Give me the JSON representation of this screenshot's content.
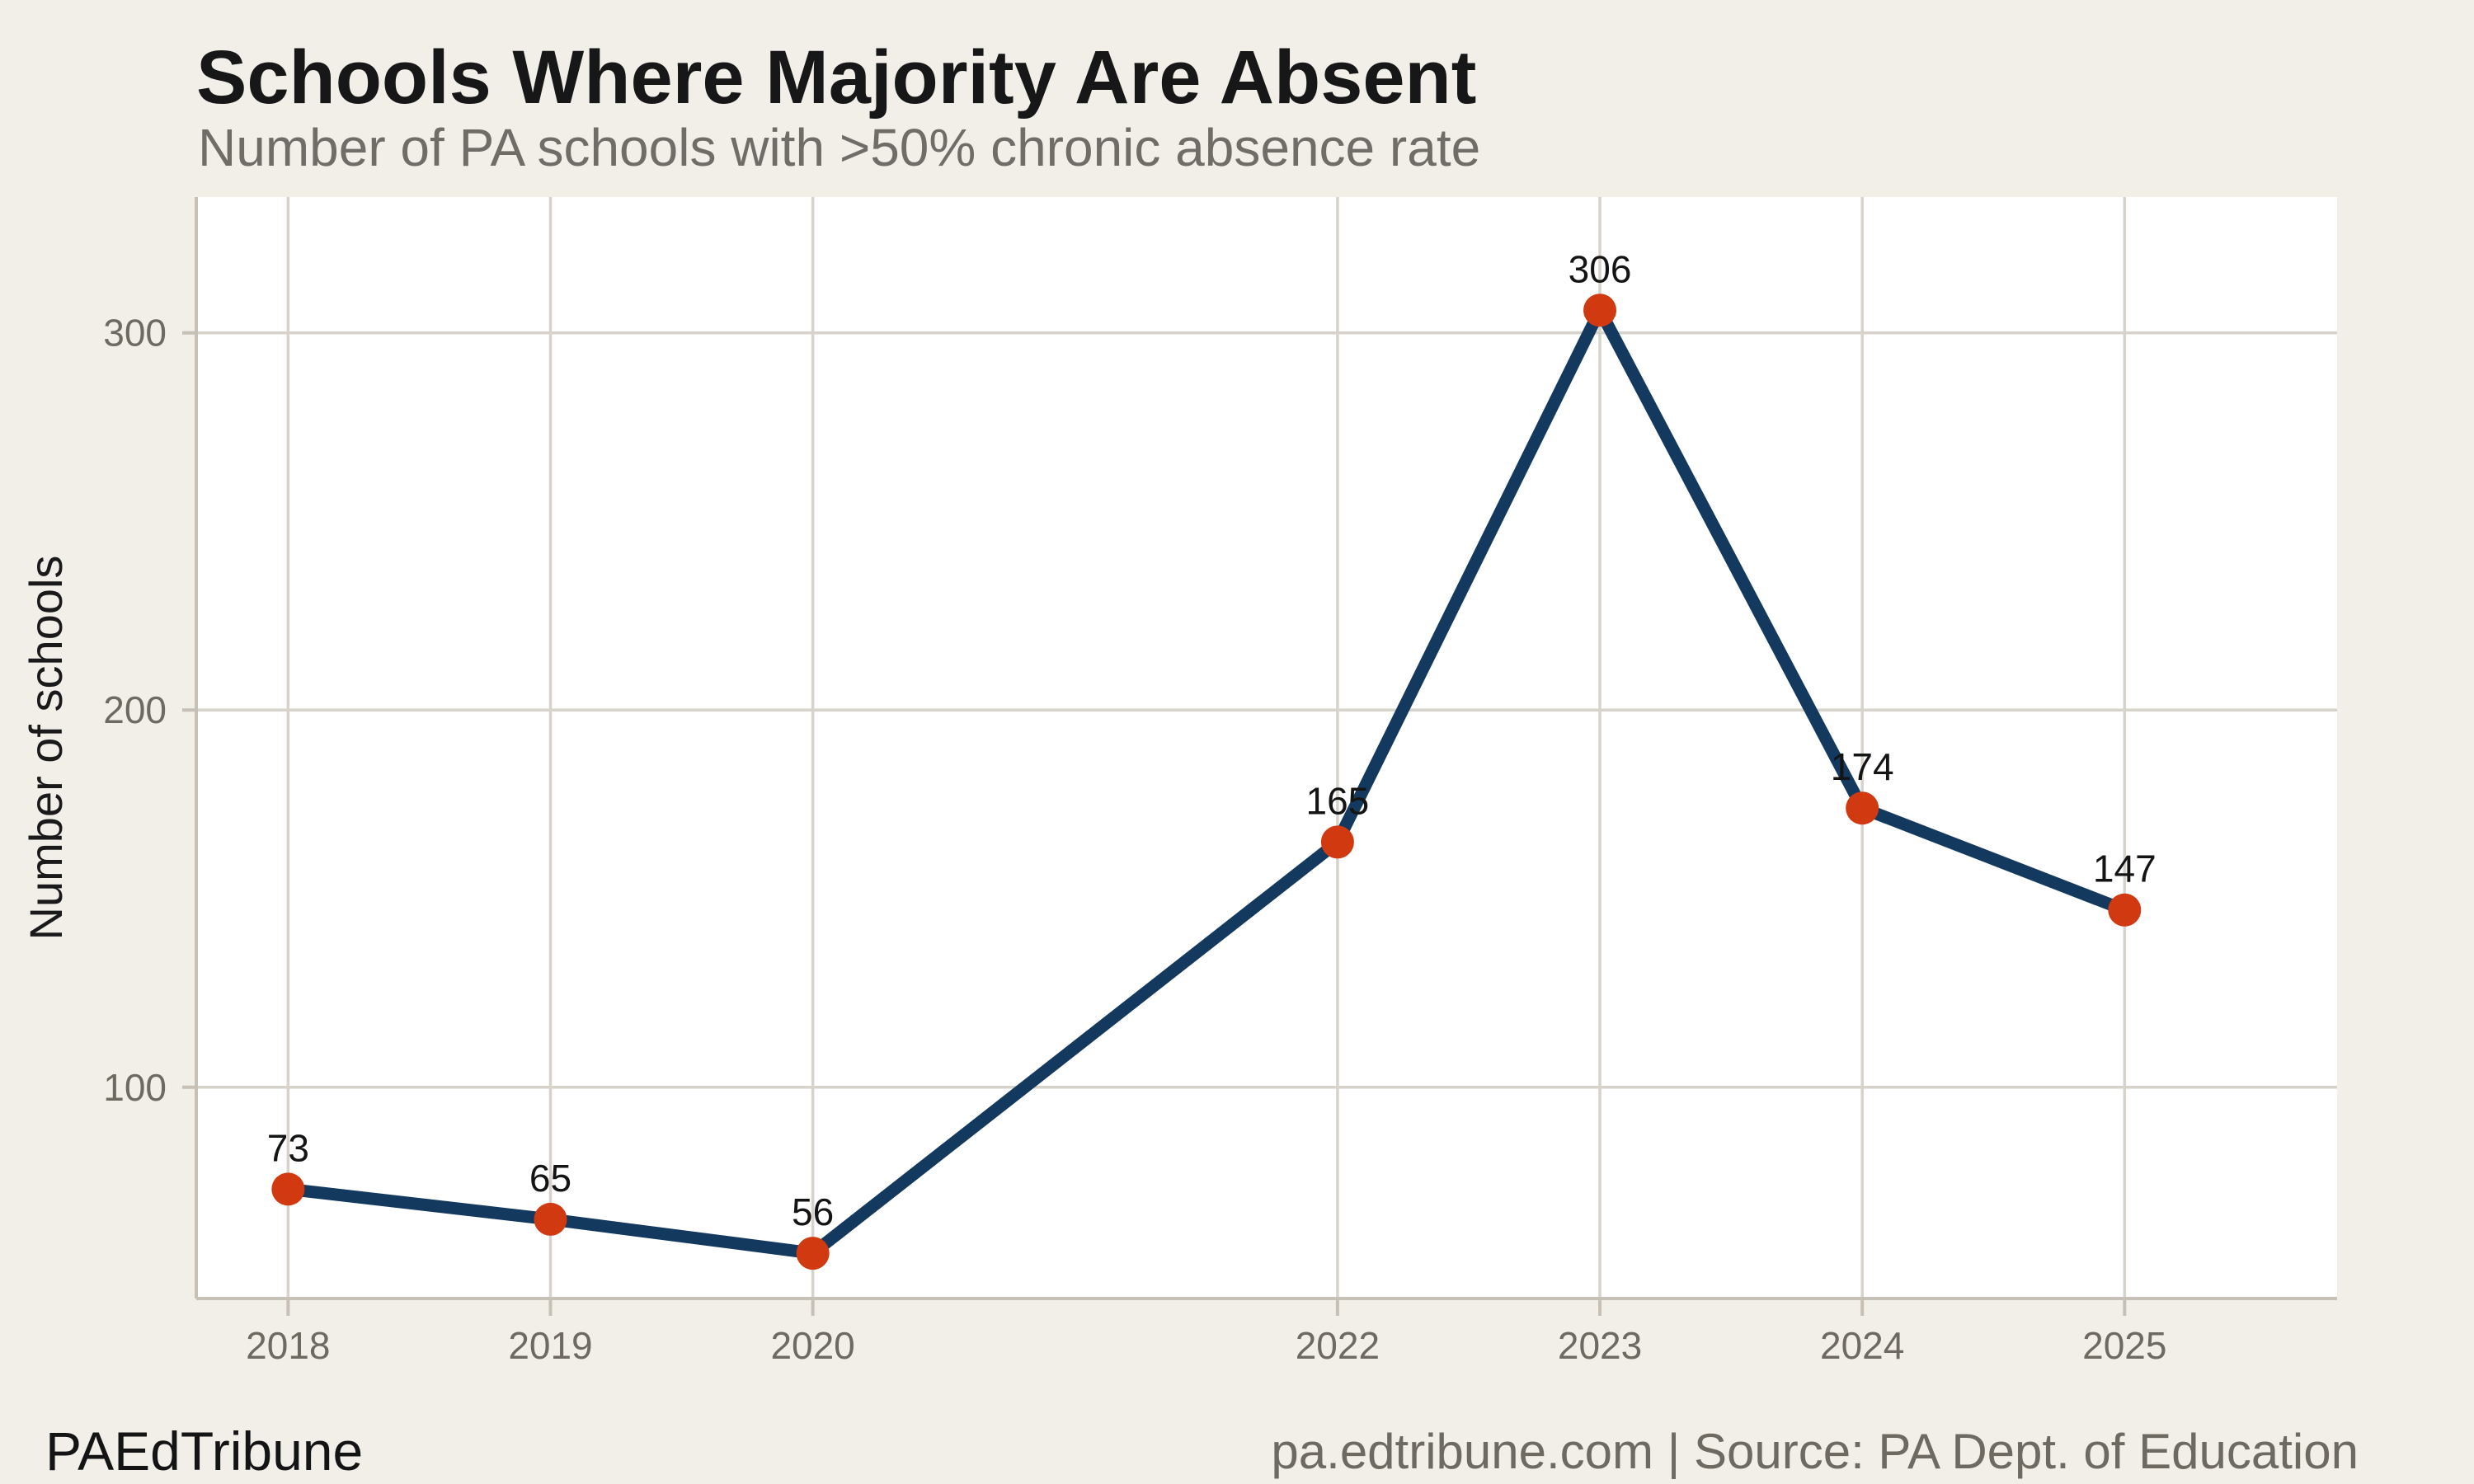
{
  "header": {
    "title": "Schools Where Majority Are Absent",
    "subtitle": "Number of PA schools with >50% chronic absence rate"
  },
  "footer": {
    "brand": "PAEdTribune",
    "source": "pa.edtribune.com | Source: PA Dept. of Education"
  },
  "chart_data": {
    "type": "line",
    "title": "Schools Where Majority Are Absent",
    "subtitle": "Number of PA schools with >50% chronic absence rate",
    "ylabel": "Number of schools",
    "xlabel": "",
    "x": [
      2018,
      2019,
      2020,
      2022,
      2023,
      2024,
      2025
    ],
    "xtick_labels": [
      "2018",
      "2019",
      "2020",
      "2022",
      "2023",
      "2024",
      "2025"
    ],
    "values": [
      73,
      65,
      56,
      165,
      306,
      174,
      147
    ],
    "point_labels": [
      "73",
      "65",
      "56",
      "165",
      "306",
      "174",
      "147"
    ],
    "yticks": [
      100,
      200,
      300
    ],
    "ytick_labels": [
      "100",
      "200",
      "300"
    ],
    "ylim": [
      44,
      336
    ],
    "xlim": [
      2017.65,
      2025.81
    ],
    "grid": true,
    "legend": false,
    "note_missing_year": "2021 has no data point; x spacing stays linear by year"
  },
  "colors": {
    "background": "#f2efe9",
    "plot_background": "#ffffff",
    "gridline": "#d7d3ca",
    "axis_line": "#c6c0b6",
    "tick_label": "#6e6a62",
    "series_line": "#14395f",
    "point_fill": "#d13a10",
    "point_label": "#141414",
    "title": "#171717",
    "subtitle": "#706d68",
    "axis_title": "#1a1a1a"
  }
}
